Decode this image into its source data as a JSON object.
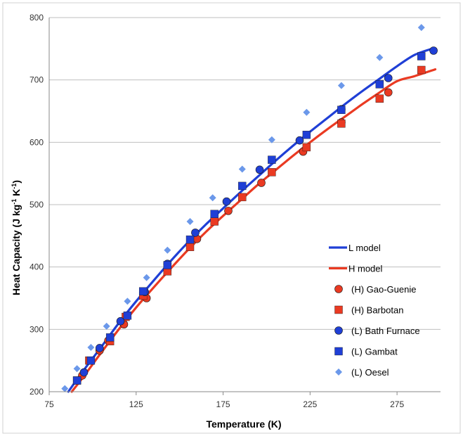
{
  "chart_data": {
    "type": "scatter",
    "title": "",
    "xlabel": "Temperature (K)",
    "ylabel": "Heat Capacity (J kg",
    "ylabel_sup1": "-1",
    "ylabel_mid": " K",
    "ylabel_sup2": "-1",
    "ylabel_end": ")",
    "xlim": [
      75,
      300
    ],
    "ylim": [
      200,
      800
    ],
    "xticks": [
      75,
      125,
      175,
      225,
      275
    ],
    "yticks": [
      200,
      300,
      400,
      500,
      600,
      700,
      800
    ],
    "grid": "horizontal",
    "legend_position": "bottom-right",
    "series": [
      {
        "name": "L model",
        "kind": "line",
        "color": "#1f3fd6",
        "x": [
          86,
          95,
          105,
          115,
          125,
          135,
          145,
          155,
          165,
          175,
          185,
          195,
          205,
          215,
          225,
          235,
          245,
          255,
          265,
          275,
          285,
          295
        ],
        "y": [
          200,
          235,
          272,
          310,
          345,
          378,
          410,
          440,
          468,
          494,
          520,
          545,
          570,
          594,
          617,
          639,
          661,
          682,
          702,
          722,
          740,
          750
        ]
      },
      {
        "name": "H model",
        "kind": "line",
        "color": "#ea3a22",
        "x": [
          88,
          95,
          105,
          115,
          125,
          135,
          145,
          155,
          165,
          175,
          185,
          195,
          205,
          215,
          225,
          235,
          245,
          255,
          265,
          275,
          285,
          297
        ],
        "y": [
          200,
          225,
          263,
          300,
          335,
          367,
          398,
          428,
          456,
          482,
          507,
          532,
          555,
          578,
          600,
          621,
          641,
          661,
          680,
          698,
          706,
          717
        ]
      },
      {
        "name": "(H) Gao-Guenie",
        "kind": "marker",
        "marker": "circle",
        "color": "#ea3a22",
        "x": [
          94,
          104,
          109,
          118,
          131,
          143,
          160,
          178,
          197,
          221,
          243,
          270
        ],
        "y": [
          226,
          266,
          282,
          308,
          350,
          395,
          445,
          490,
          535,
          585,
          632,
          680
        ]
      },
      {
        "name": "(H) Barbotan",
        "kind": "marker",
        "marker": "square",
        "color": "#ea3a22",
        "x": [
          91,
          98,
          110,
          119,
          129,
          143,
          156,
          170,
          186,
          203,
          223,
          243,
          265,
          289
        ],
        "y": [
          218,
          250,
          281,
          320,
          354,
          393,
          432,
          473,
          512,
          552,
          592,
          630,
          670,
          716
        ]
      },
      {
        "name": "(L) Bath Furnace",
        "kind": "marker",
        "marker": "circle",
        "color": "#1f3fd6",
        "x": [
          95,
          104,
          116,
          130,
          143,
          159,
          177,
          196,
          219,
          243,
          270,
          296
        ],
        "y": [
          231,
          270,
          313,
          360,
          405,
          455,
          505,
          556,
          603,
          653,
          703,
          747
        ]
      },
      {
        "name": "(L) Gambat",
        "kind": "marker",
        "marker": "square",
        "color": "#1f3fd6",
        "x": [
          91,
          99,
          110,
          120,
          129,
          143,
          156,
          170,
          186,
          203,
          223,
          243,
          265,
          289
        ],
        "y": [
          218,
          250,
          287,
          322,
          361,
          403,
          444,
          485,
          530,
          572,
          612,
          652,
          693,
          738
        ]
      },
      {
        "name": "(L) Oesel",
        "kind": "marker",
        "marker": "diamond",
        "color": "#6b98ea",
        "x": [
          84,
          91,
          99,
          108,
          120,
          131,
          143,
          156,
          169,
          186,
          203,
          223,
          243,
          265,
          289
        ],
        "y": [
          205,
          237,
          271,
          305,
          345,
          383,
          427,
          473,
          511,
          557,
          604,
          648,
          691,
          736,
          784
        ]
      }
    ]
  }
}
